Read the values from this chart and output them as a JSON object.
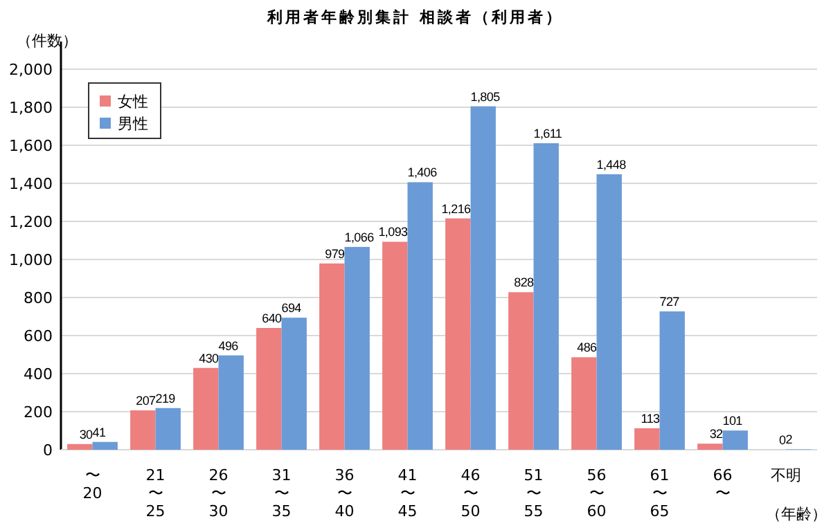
{
  "chart_data": {
    "type": "bar",
    "title": "利用者年齢別集計 相談者（利用者）",
    "ylabel": "（件数）",
    "xlabel": "（年齢）",
    "categories": [
      "〜\n20",
      "21\n〜\n25",
      "26\n〜\n30",
      "31\n〜\n35",
      "36\n〜\n40",
      "41\n〜\n45",
      "46\n〜\n50",
      "51\n〜\n55",
      "56\n〜\n60",
      "61\n〜\n65",
      "66\n〜",
      "不明"
    ],
    "series": [
      {
        "name": "女性",
        "color": "#ee7f7f",
        "values": [
          30,
          207,
          430,
          640,
          979,
          1093,
          1216,
          828,
          486,
          113,
          32,
          0
        ],
        "value_labels": [
          "30",
          "207",
          "430",
          "640",
          "979",
          "1,093",
          "1,216",
          "828",
          "486",
          "113",
          "32",
          "0"
        ]
      },
      {
        "name": "男性",
        "color": "#6b9bd6",
        "values": [
          41,
          219,
          496,
          694,
          1066,
          1406,
          1805,
          1611,
          1448,
          727,
          101,
          2
        ],
        "value_labels": [
          "41",
          "219",
          "496",
          "694",
          "1,066",
          "1,406",
          "1,805",
          "1,611",
          "1,448",
          "727",
          "101",
          "2"
        ]
      }
    ],
    "ylim": [
      0,
      2000
    ],
    "yticks": [
      0,
      200,
      400,
      600,
      800,
      {
        "value": 1000,
        "label": "1,000"
      },
      {
        "value": 1200,
        "label": "1,200"
      },
      {
        "value": 1400,
        "label": "1,400"
      },
      {
        "value": 1600,
        "label": "1,600"
      },
      {
        "value": 1800,
        "label": "1,800"
      },
      {
        "value": 2000,
        "label": "2,000"
      }
    ],
    "grid": "y",
    "legend": "top left"
  }
}
